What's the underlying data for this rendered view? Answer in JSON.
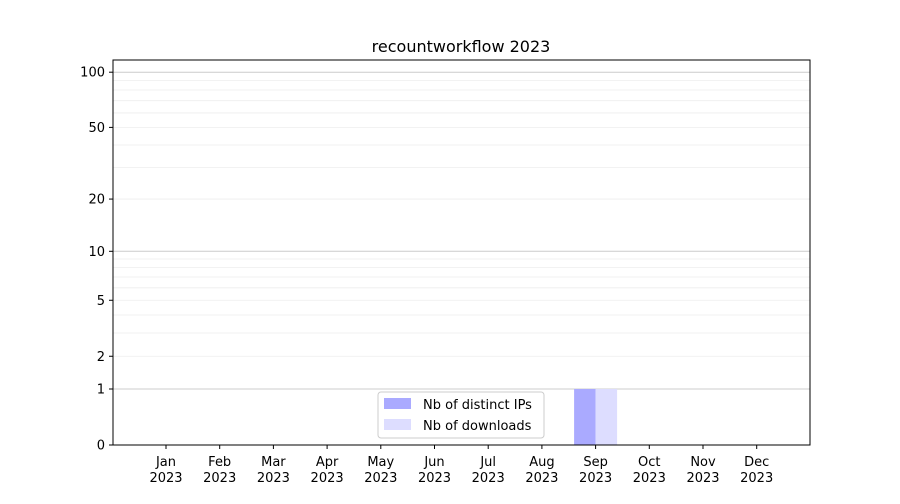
{
  "chart_data": {
    "type": "bar",
    "title": "recountworkflow 2023",
    "xlabel": "",
    "ylabel": "",
    "yscale": "log10(1+y)",
    "ylim": [
      0,
      116
    ],
    "yticks": [
      0,
      1,
      2,
      5,
      10,
      20,
      50,
      100
    ],
    "grid": true,
    "legend_placement": "lower-center",
    "categories": [
      [
        "Jan",
        "2023"
      ],
      [
        "Feb",
        "2023"
      ],
      [
        "Mar",
        "2023"
      ],
      [
        "Apr",
        "2023"
      ],
      [
        "May",
        "2023"
      ],
      [
        "Jun",
        "2023"
      ],
      [
        "Jul",
        "2023"
      ],
      [
        "Aug",
        "2023"
      ],
      [
        "Sep",
        "2023"
      ],
      [
        "Oct",
        "2023"
      ],
      [
        "Nov",
        "2023"
      ],
      [
        "Dec",
        "2023"
      ]
    ],
    "series": [
      {
        "name": "Nb of distinct IPs",
        "color": "#aaaaff",
        "values": [
          0,
          0,
          0,
          0,
          0,
          0,
          0,
          0,
          1,
          0,
          0,
          0
        ]
      },
      {
        "name": "Nb of downloads",
        "color": "#ddddff",
        "values": [
          0,
          0,
          0,
          0,
          0,
          0,
          0,
          0,
          1,
          0,
          0,
          0
        ]
      }
    ]
  }
}
